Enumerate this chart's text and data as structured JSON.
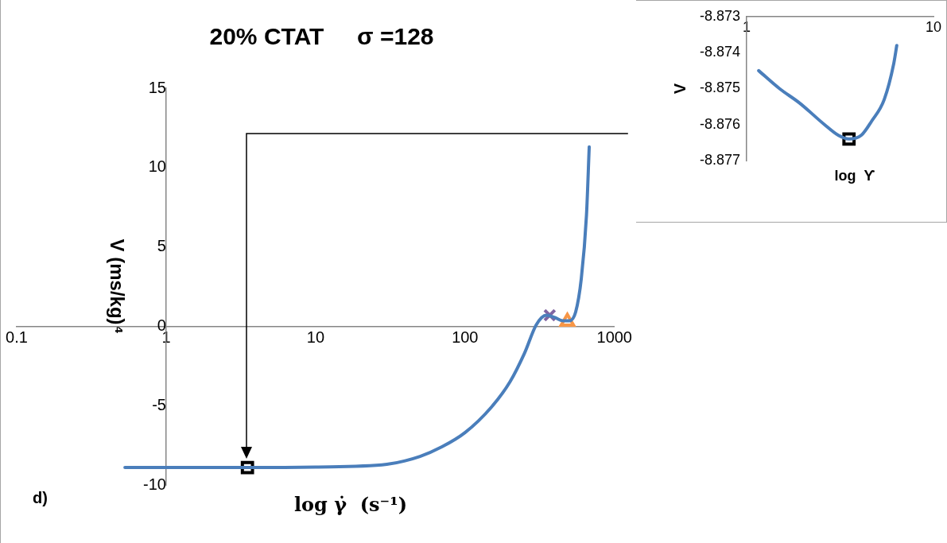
{
  "chart_data": [
    {
      "type": "line",
      "title": "20% CTAT     σ =128",
      "xlabel": "log γ̇  (s⁻¹)",
      "ylabel": "V (ms/kg)⁴",
      "annotations": [
        "d)"
      ],
      "log": "x",
      "xlim": [
        0.1,
        1000
      ],
      "xticks": [
        0.1,
        1,
        10,
        100,
        1000
      ],
      "ylim": [
        -10,
        15
      ],
      "yticks": [
        -10,
        -5,
        0,
        5,
        10,
        15
      ],
      "grid": false,
      "legend": false,
      "line_style": "solid",
      "series": [
        {
          "type": "line",
          "marker": "none",
          "color": "#4a7ebb",
          "x": [
            0.53,
            1,
            3.5,
            10,
            30,
            50,
            70,
            100,
            150,
            200,
            250,
            300,
            350,
            400,
            450,
            500,
            550,
            600,
            650,
            678
          ],
          "values": [
            -8.9,
            -8.9,
            -8.9,
            -8.87,
            -8.7,
            -8.2,
            -7.6,
            -6.7,
            -5.1,
            -3.5,
            -1.7,
            0.1,
            0.7,
            0.55,
            0.35,
            0.35,
            0.9,
            3.0,
            7.0,
            11.3
          ]
        },
        {
          "type": "scatter",
          "marker": "square",
          "color": "#000000",
          "x": [
            3.5
          ],
          "values": [
            -8.9
          ]
        },
        {
          "type": "scatter",
          "marker": "cross",
          "color": "#8064a2",
          "x": [
            369
          ],
          "values": [
            0.7
          ]
        },
        {
          "type": "scatter",
          "marker": "triangle",
          "color": "#f79646",
          "x": [
            484
          ],
          "values": [
            0.3
          ]
        }
      ]
    },
    {
      "type": "line",
      "xlabel": "log  ϒ",
      "ylabel": "V",
      "log": "x",
      "xlim": [
        1,
        10
      ],
      "xticks": [
        1,
        10
      ],
      "ylim": [
        -8.877,
        -8.873
      ],
      "yticks": [
        -8.877,
        -8.876,
        -8.875,
        -8.874,
        -8.873
      ],
      "grid": false,
      "legend": false,
      "line_style": "solid",
      "series": [
        {
          "type": "line",
          "marker": "none",
          "color": "#4a7ebb",
          "x": [
            1.16,
            1.5,
            1.92,
            2.61,
            3.1,
            3.53,
            4.1,
            4.67,
            5.45,
            6.13,
            6.36
          ],
          "values": [
            -8.8745,
            -8.875,
            -8.8754,
            -8.876,
            -8.8763,
            -8.8764,
            -8.8763,
            -8.8759,
            -8.8753,
            -8.8743,
            -8.8738
          ]
        },
        {
          "type": "scatter",
          "marker": "square",
          "color": "#000000",
          "x": [
            3.53
          ],
          "values": [
            -8.8764
          ]
        }
      ]
    }
  ]
}
